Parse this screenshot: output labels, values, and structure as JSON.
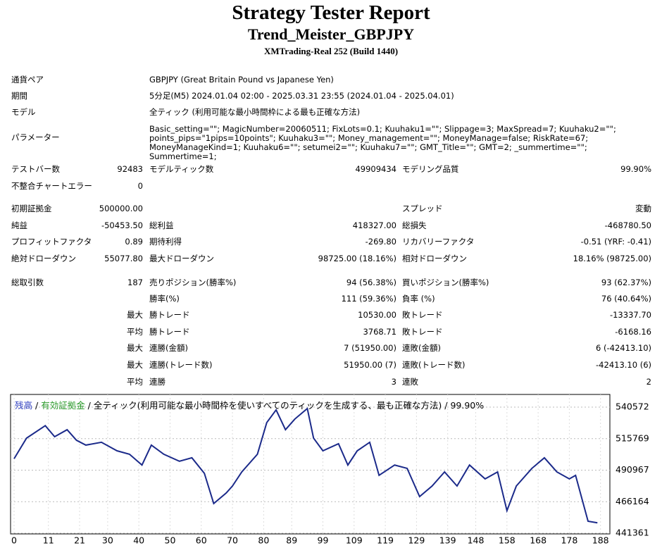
{
  "header": {
    "title": "Strategy Tester Report",
    "subtitle": "Trend_Meister_GBPJPY",
    "build": "XMTrading-Real 252 (Build 1440)"
  },
  "table": {
    "rows": [
      {
        "l1": "通貨ペア",
        "l2": "GBPJPY (Great Britain Pound vs Japanese Yen)"
      },
      {
        "l1": "期間",
        "l2": "5分足(M5) 2024.01.04 02:00 - 2025.03.31 23:55 (2024.01.04 - 2025.04.01)"
      },
      {
        "l1": "モデル",
        "l2": "全ティック (利用可能な最小時間枠による最も正確な方法)"
      },
      {
        "l1": "パラメーター",
        "l2": "Basic_setting=\"\"; MagicNumber=20060511; FixLots=0.1; Kuuhaku1=\"\"; Slippage=3; MaxSpread=7; Kuuhaku2=\"\"; points_pips=\"1pips=10points\"; Kuuhaku3=\"\"; Money_management=\"\"; MoneyManage=false; RiskRate=67; MoneyManageKind=1; Kuuhaku6=\"\"; setumei2=\"\"; Kuuhaku7=\"\"; GMT_Title=\"\"; GMT=2; _summertime=\"\"; Summertime=1;"
      },
      {
        "l1": "テストバー数",
        "v1": "92483",
        "l2": "モデルティック数",
        "v2": "49909434",
        "l3": "モデリング品質",
        "v3": "99.90%"
      },
      {
        "l1": "不整合チャートエラー",
        "v1": "0"
      },
      {
        "l1": "初期証拠金",
        "v1": "500000.00",
        "l3": "スプレッド",
        "v3": "変動"
      },
      {
        "l1": "純益",
        "v1": "-50453.50",
        "l2": "総利益",
        "v2": "418327.00",
        "l3": "総損失",
        "v3": "-468780.50"
      },
      {
        "l1": "プロフィットファクタ",
        "v1": "0.89",
        "l2": "期待利得",
        "v2": "-269.80",
        "l3": "リカバリーファクタ",
        "v3": "-0.51 (YRF: -0.41)"
      },
      {
        "l1": "絶対ドローダウン",
        "v1": "55077.80",
        "l2": "最大ドローダウン",
        "v2": "98725.00 (18.16%)",
        "l3": "相対ドローダウン",
        "v3": "18.16% (98725.00)"
      },
      {
        "l1": "総取引数",
        "v1": "187",
        "l2": "売りポジション(勝率%)",
        "v2": "94 (56.38%)",
        "l3": "買いポジション(勝率%)",
        "v3": "93 (62.37%)"
      },
      {
        "l2": "勝率(%)",
        "v2": "111 (59.36%)",
        "l3": "負率 (%)",
        "v3": "76 (40.64%)"
      },
      {
        "v1": "最大",
        "l2": "勝トレード",
        "v2": "10530.00",
        "l3": "敗トレード",
        "v3": "-13337.70"
      },
      {
        "v1": "平均",
        "l2": "勝トレード",
        "v2": "3768.71",
        "l3": "敗トレード",
        "v3": "-6168.16"
      },
      {
        "v1": "最大",
        "l2": "連勝(金額)",
        "v2": "7 (51950.00)",
        "l3": "連敗(金額)",
        "v3": "6 (-42413.10)"
      },
      {
        "v1": "最大",
        "l2": "連勝(トレード数)",
        "v2": "51950.00 (7)",
        "l3": "連敗(トレード数)",
        "v3": "-42413.10 (6)"
      },
      {
        "v1": "平均",
        "l2": "連勝",
        "v2": "3",
        "l3": "連敗",
        "v3": "2"
      }
    ]
  },
  "chart_data": {
    "type": "line",
    "series": [
      {
        "name": "残高",
        "color": "#1b2a8a",
        "legend_color": "#2f3fc0",
        "x": [
          0,
          4,
          10,
          13,
          17,
          20,
          23,
          28,
          33,
          37,
          41,
          44,
          48,
          53,
          57,
          61,
          64,
          68,
          70,
          73,
          78,
          81,
          84,
          87,
          90,
          94,
          96,
          99,
          104,
          107,
          110,
          114,
          117,
          122,
          126,
          130,
          134,
          138,
          142,
          146,
          151,
          155,
          158,
          161,
          166,
          170,
          174,
          178,
          180,
          184,
          187
        ],
        "values": [
          500000,
          516200,
          526000,
          517300,
          522800,
          514500,
          510700,
          512900,
          506200,
          503500,
          495000,
          510700,
          503500,
          498000,
          500700,
          488500,
          464700,
          473000,
          478500,
          489600,
          503500,
          528400,
          538400,
          522800,
          531200,
          539500,
          516200,
          506200,
          511800,
          495000,
          506200,
          512900,
          486900,
          495000,
          492400,
          470200,
          478500,
          489600,
          478500,
          495000,
          484100,
          489600,
          459100,
          478500,
          492400,
          500700,
          489600,
          484100,
          486900,
          450800,
          449546
        ]
      }
    ],
    "equity_label": "有効証拠金",
    "equity_color": "#2a9a2a",
    "model_label": "全ティック(利用可能な最小時間枠を使いすべてのティックを生成する、最も正確な方法)",
    "quality": "99.90%",
    "xlim": [
      0,
      191
    ],
    "xticks": [
      0,
      11,
      21,
      30,
      40,
      50,
      60,
      70,
      80,
      89,
      99,
      109,
      119,
      129,
      139,
      148,
      158,
      168,
      178,
      188
    ],
    "ylim": [
      441361,
      550000
    ],
    "yticks": [
      441361,
      466164,
      490967,
      515769,
      540572
    ],
    "grid": true
  }
}
